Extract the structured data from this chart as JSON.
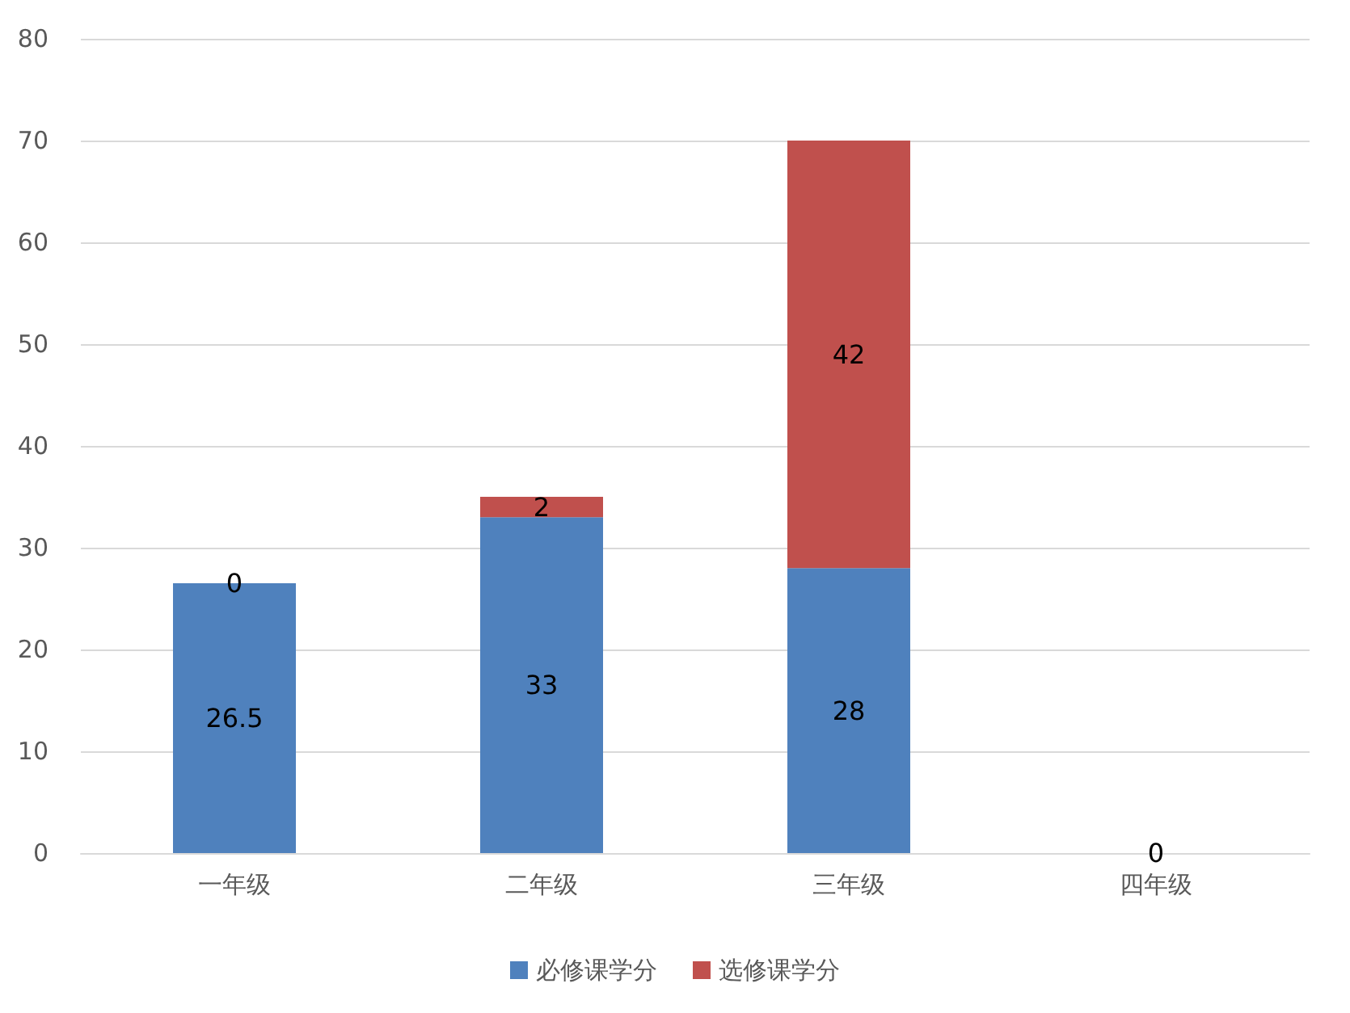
{
  "chart_data": {
    "type": "bar",
    "stacked": true,
    "categories": [
      "一年级",
      "二年级",
      "三年级",
      "四年级"
    ],
    "series": [
      {
        "name": "必修课学分",
        "color": "#4f81bd",
        "values": [
          26.5,
          33,
          28,
          0
        ],
        "value_labels": [
          "26.5",
          "33",
          "28",
          "0"
        ]
      },
      {
        "name": "选修课学分",
        "color": "#c0504d",
        "values": [
          0,
          2,
          42,
          0
        ],
        "value_labels": [
          "0",
          "2",
          "42",
          null
        ]
      }
    ],
    "ylim": [
      0,
      80
    ],
    "yticks": [
      0,
      10,
      20,
      30,
      40,
      50,
      60,
      70,
      80
    ],
    "grid": "y",
    "legend": "bottom"
  }
}
